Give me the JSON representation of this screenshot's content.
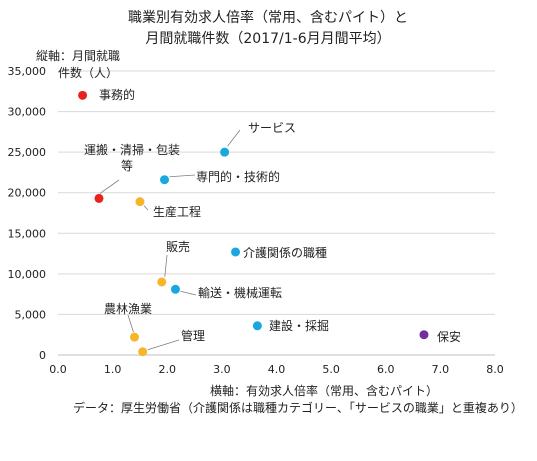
{
  "chart_data": {
    "type": "scatter",
    "title": [
      "職業別有効求人倍率（常用、含むパイト）と",
      "月間就職件数（2017/1-6月月間平均）"
    ],
    "ylabel": [
      "縦軸：月間就職",
      "件数（人）"
    ],
    "xlabel": "横軸：有効求人倍率（常用、含むパイト）",
    "source": "データ：厚生労働省（介護関係は職種カテゴリー、「サービスの職業」と重複あり）",
    "xlim": [
      0,
      8
    ],
    "ylim": [
      0,
      35000
    ],
    "x_ticks": [
      "0.0",
      "1.0",
      "2.0",
      "3.0",
      "4.0",
      "5.0",
      "6.0",
      "7.0",
      "8.0"
    ],
    "y_ticks": [
      "0",
      "5,000",
      "10,000",
      "15,000",
      "20,000",
      "25,000",
      "30,000",
      "35,000"
    ],
    "grid": "horizontal",
    "colors": {
      "red": "#e8231d",
      "orange": "#f7b52c",
      "cyan": "#1aa7e0",
      "purple": "#7030a0"
    },
    "points": [
      {
        "label": "事務的",
        "x": 0.45,
        "y": 32000,
        "color": "#e8231d"
      },
      {
        "label": "運搬・清掃・包装等",
        "label_lines": [
          "運搬・清掃・包装",
          "等"
        ],
        "x": 0.75,
        "y": 19300,
        "color": "#e8231d"
      },
      {
        "label": "生産工程",
        "x": 1.5,
        "y": 18900,
        "color": "#f7b52c"
      },
      {
        "label": "専門的・技術的",
        "x": 1.95,
        "y": 21600,
        "color": "#1aa7e0"
      },
      {
        "label": "サービス",
        "x": 3.05,
        "y": 25000,
        "color": "#1aa7e0"
      },
      {
        "label": "介護関係の職種",
        "x": 3.25,
        "y": 12700,
        "color": "#1aa7e0"
      },
      {
        "label": "販売",
        "x": 1.9,
        "y": 9000,
        "color": "#f7b52c"
      },
      {
        "label": "輸送・機械運転",
        "x": 2.15,
        "y": 8100,
        "color": "#1aa7e0"
      },
      {
        "label": "農林漁業",
        "x": 1.4,
        "y": 2200,
        "color": "#f7b52c"
      },
      {
        "label": "管理",
        "x": 1.55,
        "y": 400,
        "color": "#f7b52c"
      },
      {
        "label": "建設・採掘",
        "x": 3.65,
        "y": 3600,
        "color": "#1aa7e0"
      },
      {
        "label": "保安",
        "x": 6.7,
        "y": 2500,
        "color": "#7030a0"
      }
    ]
  }
}
